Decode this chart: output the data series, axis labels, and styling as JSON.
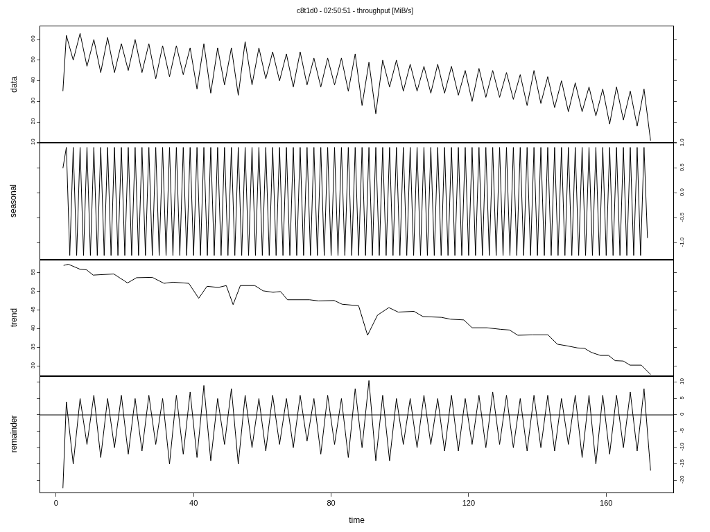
{
  "chart_data": [
    {
      "type": "line",
      "title": "c8t1d0 - 02:50:51 - throughput [MiB/s]",
      "ylabel": "data",
      "xlim": [
        -4.6,
        179.5
      ],
      "ylim": [
        9.9,
        66.4
      ],
      "yticks": [
        10,
        20,
        30,
        40,
        50,
        60
      ],
      "tick_labels": "y",
      "grid": false,
      "series": [
        {
          "color": "#000000",
          "x": [
            2,
            3,
            5,
            7,
            9,
            11,
            13,
            15,
            17,
            19,
            21,
            23,
            25,
            27,
            29,
            31,
            33,
            35,
            37,
            39,
            41,
            43,
            45,
            47,
            49,
            51,
            53,
            55,
            57,
            59,
            61,
            63,
            65,
            67,
            69,
            71,
            73,
            75,
            77,
            79,
            81,
            83,
            85,
            87,
            89,
            91,
            93,
            95,
            97,
            99,
            101,
            103,
            105,
            107,
            109,
            111,
            113,
            115,
            117,
            119,
            121,
            123,
            125,
            127,
            129,
            131,
            133,
            135,
            137,
            139,
            141,
            143,
            145,
            147,
            149,
            151,
            153,
            155,
            157,
            159,
            161,
            163,
            165,
            167,
            169,
            171,
            172.9
          ],
          "values": [
            35,
            62,
            50,
            63,
            47,
            60,
            44,
            61,
            44,
            58,
            45,
            60,
            44,
            58,
            41,
            57,
            42,
            57,
            43,
            56,
            36,
            58,
            34,
            56,
            38,
            56,
            33,
            59,
            38,
            56,
            41,
            54,
            40,
            53,
            37,
            54,
            38,
            51,
            37,
            51,
            38,
            51,
            35,
            53,
            28,
            49,
            24,
            50,
            37,
            50,
            35,
            48,
            35,
            47,
            34,
            48,
            34,
            47,
            33,
            45,
            30,
            46,
            32,
            45,
            32,
            44,
            31,
            43,
            28,
            45,
            29,
            42,
            27,
            40,
            25,
            39,
            25,
            37,
            23,
            36,
            19,
            37,
            21,
            35,
            18,
            36,
            11
          ]
        }
      ]
    },
    {
      "type": "line",
      "ylabel": "seasonal",
      "xlim": [
        -4.6,
        179.5
      ],
      "ylim": [
        -1.33,
        1.01
      ],
      "yticks": [
        {
          "value": -1,
          "label": "-1.0"
        },
        -0.5,
        {
          "value": 0,
          "label": "0.0"
        },
        0.5,
        {
          "value": 1,
          "label": "1.0"
        }
      ],
      "tick_labels": "y",
      "grid": false,
      "series": [
        {
          "color": "#000000",
          "x": [
            2,
            3,
            4,
            5,
            6,
            7,
            8,
            9,
            10,
            11,
            12,
            13,
            14,
            15,
            16,
            17,
            18,
            19,
            20,
            21,
            22,
            23,
            24,
            25,
            26,
            27,
            28,
            29,
            30,
            31,
            32,
            33,
            34,
            35,
            36,
            37,
            38,
            39,
            40,
            41,
            42,
            43,
            44,
            45,
            46,
            47,
            48,
            49,
            50,
            51,
            52,
            53,
            54,
            55,
            56,
            57,
            58,
            59,
            60,
            61,
            62,
            63,
            64,
            65,
            66,
            67,
            68,
            69,
            70,
            71,
            72,
            73,
            74,
            75,
            76,
            77,
            78,
            79,
            80,
            81,
            82,
            83,
            84,
            85,
            86,
            87,
            88,
            89,
            90,
            91,
            92,
            93,
            94,
            95,
            96,
            97,
            98,
            99,
            100,
            101,
            102,
            103,
            104,
            105,
            106,
            107,
            108,
            109,
            110,
            111,
            112,
            113,
            114,
            115,
            116,
            117,
            118,
            119,
            120,
            121,
            122,
            123,
            124,
            125,
            126,
            127,
            128,
            129,
            130,
            131,
            132,
            133,
            134,
            135,
            136,
            137,
            138,
            139,
            140,
            141,
            142,
            143,
            144,
            145,
            146,
            147,
            148,
            149,
            150,
            151,
            152,
            153,
            154,
            155,
            156,
            157,
            158,
            159,
            160,
            161,
            162,
            163,
            164,
            165,
            166,
            167,
            168,
            169,
            170,
            171,
            172
          ],
          "values": [
            0.5,
            0.92,
            -1.25,
            0.92,
            -1.25,
            0.92,
            -1.25,
            0.92,
            -1.25,
            0.92,
            -1.25,
            0.92,
            -1.25,
            0.92,
            -1.25,
            0.92,
            -1.25,
            0.92,
            -1.25,
            0.92,
            -1.25,
            0.92,
            -1.25,
            0.92,
            -1.25,
            0.92,
            -1.25,
            0.92,
            -1.25,
            0.92,
            -1.25,
            0.92,
            -1.25,
            0.92,
            -1.25,
            0.92,
            -1.25,
            0.92,
            -1.25,
            0.92,
            -1.25,
            0.92,
            -1.25,
            0.92,
            -1.25,
            0.92,
            -1.25,
            0.92,
            -1.25,
            0.92,
            -1.25,
            0.92,
            -1.25,
            0.92,
            -1.25,
            0.92,
            -1.25,
            0.92,
            -1.25,
            0.92,
            -1.25,
            0.92,
            -1.25,
            0.92,
            -1.25,
            0.92,
            -1.25,
            0.92,
            -1.25,
            0.92,
            -1.25,
            0.92,
            -1.25,
            0.92,
            -1.25,
            0.92,
            -1.25,
            0.92,
            -1.25,
            0.92,
            -1.25,
            0.92,
            -1.25,
            0.92,
            -1.25,
            0.92,
            -1.25,
            0.92,
            -1.25,
            0.92,
            -1.25,
            0.92,
            -1.25,
            0.92,
            -1.25,
            0.92,
            -1.25,
            0.92,
            -1.25,
            0.92,
            -1.25,
            0.92,
            -1.25,
            0.92,
            -1.25,
            0.92,
            -1.25,
            0.92,
            -1.25,
            0.92,
            -1.25,
            0.92,
            -1.25,
            0.92,
            -1.25,
            0.92,
            -1.25,
            0.92,
            -1.25,
            0.92,
            -1.25,
            0.92,
            -1.25,
            0.92,
            -1.25,
            0.92,
            -1.25,
            0.92,
            -1.25,
            0.92,
            -1.25,
            0.92,
            -1.25,
            0.92,
            -1.25,
            0.92,
            -1.25,
            0.92,
            -1.25,
            0.92,
            -1.25,
            0.92,
            -1.25,
            0.92,
            -1.25,
            0.92,
            -1.25,
            0.92,
            -1.25,
            0.92,
            -1.25,
            0.92,
            -1.25,
            0.92,
            -1.25,
            0.92,
            -1.25,
            0.92,
            -1.25,
            0.92,
            -1.25,
            0.92,
            -1.25,
            0.92,
            -1.25,
            0.92,
            -1.25,
            0.92,
            -1.25,
            0.92,
            -0.9
          ]
        }
      ]
    },
    {
      "type": "line",
      "ylabel": "trend",
      "xlim": [
        -4.6,
        179.5
      ],
      "ylim": [
        27.4,
        58.6
      ],
      "yticks": [
        30,
        35,
        40,
        45,
        50,
        55
      ],
      "tick_labels": "y",
      "grid": false,
      "series": [
        {
          "color": "#000000",
          "x": [
            2.2,
            3.6,
            6.9,
            8.9,
            10.8,
            16.8,
            20.8,
            23.4,
            28.0,
            31.4,
            34.0,
            38.6,
            41.5,
            43.9,
            47.2,
            49.5,
            51.5,
            53.6,
            57.8,
            60.2,
            63.1,
            65.3,
            67.3,
            73.7,
            76.3,
            80.9,
            83.2,
            88.0,
            90.6,
            93.5,
            96.8,
            99.5,
            104.1,
            106.7,
            112.0,
            114.7,
            118.6,
            121.0,
            125.3,
            129.2,
            131.9,
            134.3,
            138.5,
            143.1,
            145.8,
            148.4,
            151.7,
            153.7,
            155.7,
            158.3,
            160.7,
            162.6,
            165.0,
            166.9,
            170.2,
            172.9
          ],
          "values": [
            57.0,
            57.3,
            56.0,
            55.8,
            54.4,
            54.7,
            52.3,
            53.7,
            53.8,
            52.2,
            52.5,
            52.2,
            48.2,
            51.4,
            51.1,
            51.6,
            46.5,
            51.6,
            51.6,
            50.2,
            49.8,
            50.0,
            47.8,
            47.8,
            47.5,
            47.6,
            46.6,
            46.2,
            38.3,
            43.7,
            45.7,
            44.5,
            44.7,
            43.3,
            43.1,
            42.6,
            42.4,
            40.3,
            40.3,
            39.9,
            39.7,
            38.3,
            38.4,
            38.4,
            35.9,
            35.5,
            34.9,
            34.8,
            33.7,
            32.9,
            32.9,
            31.5,
            31.4,
            30.3,
            30.3,
            27.8
          ]
        }
      ]
    },
    {
      "type": "line",
      "ylabel": "remainder",
      "xlabel": "time",
      "xlim": [
        -4.6,
        179.5
      ],
      "xticks": [
        0,
        40,
        80,
        120,
        160
      ],
      "ylim": [
        -23.7,
        11.9
      ],
      "yticks": [
        -20,
        -15,
        -10,
        -5,
        0,
        5,
        10
      ],
      "grid": false,
      "ref_lines": [
        {
          "axis": "y",
          "value": 0,
          "color": "#000000"
        }
      ],
      "series": [
        {
          "color": "#000000",
          "x": [
            2,
            3,
            5,
            7,
            9,
            11,
            13,
            15,
            17,
            19,
            21,
            23,
            25,
            27,
            29,
            31,
            33,
            35,
            37,
            39,
            41,
            43,
            45,
            47,
            49,
            51,
            53,
            55,
            57,
            59,
            61,
            63,
            65,
            67,
            69,
            71,
            73,
            75,
            77,
            79,
            81,
            83,
            85,
            87,
            89,
            91,
            93,
            95,
            97,
            99,
            101,
            103,
            105,
            107,
            109,
            111,
            113,
            115,
            117,
            119,
            121,
            123,
            125,
            127,
            129,
            131,
            133,
            135,
            137,
            139,
            141,
            143,
            145,
            147,
            149,
            151,
            153,
            155,
            157,
            159,
            161,
            163,
            165,
            167,
            169,
            171,
            172.9
          ],
          "values": [
            -22.4,
            4,
            -15,
            5,
            -9,
            6,
            -13,
            5,
            -10,
            6,
            -12,
            5,
            -11,
            6,
            -9,
            5,
            -15,
            6,
            -12,
            7,
            -13,
            9,
            -14,
            5,
            -9,
            8,
            -15,
            6,
            -10,
            5,
            -11,
            6,
            -9,
            5,
            -10,
            6,
            -8,
            5,
            -12,
            6,
            -9,
            5,
            -13,
            8,
            -10,
            10.5,
            -14,
            6,
            -14,
            5,
            -9,
            5,
            -10,
            6,
            -9,
            5,
            -11,
            6,
            -11,
            5,
            -9,
            6,
            -10,
            7,
            -9,
            6,
            -10,
            5,
            -11,
            6,
            -10,
            6,
            -11,
            5,
            -9,
            6,
            -13,
            6,
            -15,
            6,
            -12,
            6,
            -10,
            7,
            -11,
            8,
            -17
          ]
        }
      ]
    }
  ]
}
